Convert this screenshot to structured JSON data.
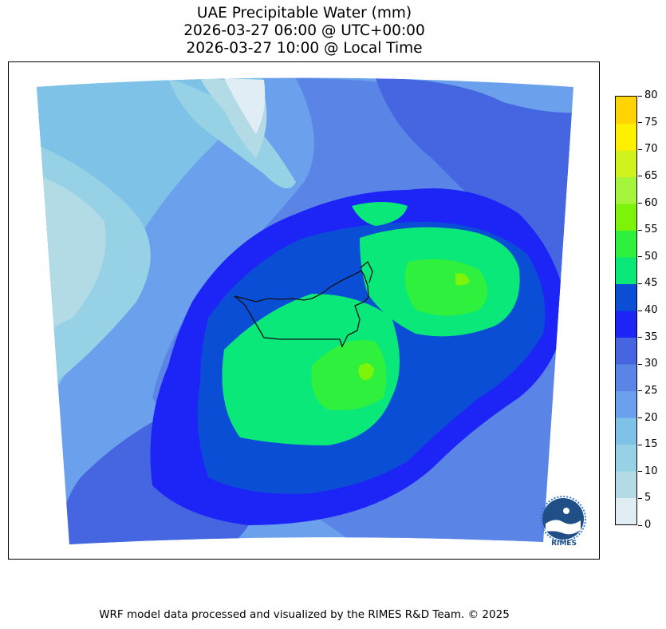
{
  "title": {
    "line1": "UAE Precipitable Water (mm)",
    "line2": "2026-03-27 06:00 @ UTC+00:00",
    "line3": "2026-03-27 10:00 @ Local Time"
  },
  "colorbar": {
    "ticks": [
      "0",
      "5",
      "10",
      "15",
      "20",
      "25",
      "30",
      "35",
      "40",
      "45",
      "50",
      "55",
      "60",
      "65",
      "70",
      "75",
      "80"
    ],
    "colors": [
      "#e0edf5",
      "#b3dbe6",
      "#97d1e5",
      "#7ec2e8",
      "#6aa0ec",
      "#5a85e6",
      "#4566e0",
      "#1c25f5",
      "#0a4ed6",
      "#0ae87a",
      "#2ff03c",
      "#7df30a",
      "#a4f53c",
      "#d2f21e",
      "#fff000",
      "#ffd400"
    ]
  },
  "logo": {
    "name": "rimes-logo-icon",
    "text": "RIMES"
  },
  "footer": "WRF model data processed and visualized by the RIMES R&D Team. © 2025"
}
